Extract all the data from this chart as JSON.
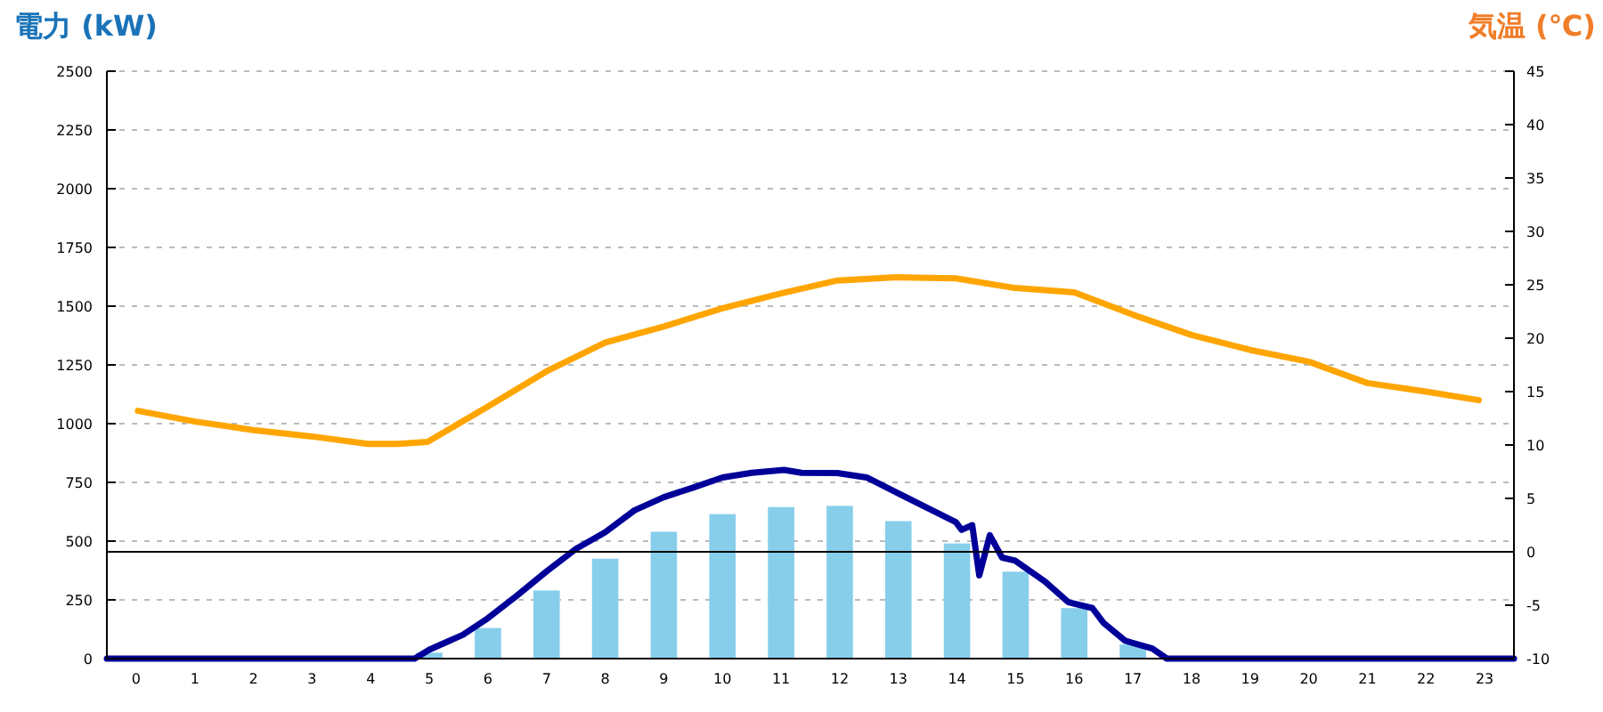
{
  "chart_data": {
    "type": "bar",
    "ylabel": "電力 (kW)",
    "y2label": "気温 (℃)",
    "x": [
      0,
      1,
      2,
      3,
      4,
      5,
      6,
      7,
      8,
      9,
      10,
      11,
      12,
      13,
      14,
      15,
      16,
      17,
      18,
      19,
      20,
      21,
      22,
      23
    ],
    "xlim": [
      -0.5,
      23.5
    ],
    "xticks": [
      0,
      1,
      2,
      3,
      4,
      5,
      6,
      7,
      8,
      9,
      10,
      11,
      12,
      13,
      14,
      15,
      16,
      17,
      18,
      19,
      20,
      21,
      22,
      23
    ],
    "ylim": [
      0,
      2500
    ],
    "yticks": [
      0,
      250,
      500,
      750,
      1000,
      1250,
      1500,
      1750,
      2000,
      2250,
      2500
    ],
    "y2lim": [
      -10,
      45
    ],
    "y2ticks": [
      -10,
      -5,
      0,
      5,
      10,
      15,
      20,
      25,
      30,
      35,
      40,
      45
    ],
    "grid": "y",
    "series": [
      {
        "color": "#87ceeb",
        "values": [
          0,
          0,
          0,
          0,
          0,
          25,
          130,
          290,
          425,
          540,
          615,
          645,
          650,
          585,
          490,
          370,
          215,
          60,
          0,
          0,
          0,
          0,
          0,
          0
        ]
      },
      {
        "type": "line",
        "color": "#000099",
        "x": [
          -0.5,
          4.75,
          5.0,
          5.57,
          6.0,
          6.48,
          7.0,
          7.5,
          8.0,
          8.5,
          9.0,
          9.5,
          10.0,
          10.5,
          11.05,
          11.35,
          11.96,
          12.46,
          12.97,
          13.47,
          13.98,
          14.08,
          14.26,
          14.38,
          14.56,
          14.77,
          14.99,
          15.5,
          15.9,
          16.31,
          16.5,
          16.87,
          17.33,
          17.58,
          23.5
        ],
        "values": [
          0,
          0,
          38,
          101,
          172,
          265,
          371,
          467,
          538,
          631,
          687,
          728,
          771,
          791,
          803,
          791,
          790,
          771,
          707,
          644,
          581,
          548,
          568,
          354,
          525,
          430,
          417,
          328,
          240,
          215,
          152,
          76,
          43,
          0,
          0
        ]
      },
      {
        "type": "line",
        "axis": "y2",
        "color": "#ffa500",
        "x": [
          0.03,
          1.0,
          2.0,
          3.0,
          3.95,
          4.46,
          4.97,
          6.0,
          7.0,
          8.0,
          9.0,
          10.0,
          11.0,
          11.96,
          12.97,
          13.98,
          14.99,
          16.0,
          17.0,
          18.0,
          19.0,
          20.0,
          21.0,
          22.0,
          22.9
        ],
        "values": [
          13.2,
          12.2,
          11.4,
          10.8,
          10.1,
          10.1,
          10.3,
          13.6,
          16.9,
          19.6,
          21.1,
          22.8,
          24.2,
          25.4,
          25.7,
          25.6,
          24.7,
          24.3,
          22.2,
          20.3,
          18.9,
          17.8,
          15.8,
          15.0,
          14.2
        ]
      }
    ],
    "ref_lines": [
      {
        "axis": "y2",
        "value": 0,
        "color": "#000000"
      }
    ]
  }
}
